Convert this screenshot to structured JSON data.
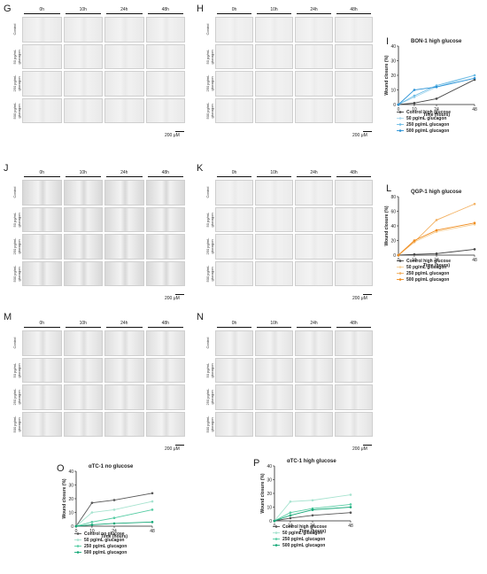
{
  "micro_panels": [
    {
      "id": "G",
      "bg": "#e9e9e9",
      "col_heads": [
        "0h",
        "10h",
        "24h",
        "48h"
      ],
      "rows": [
        "Control",
        "50 pg/mL glucagon",
        "250 pg/mL glucagon",
        "500 pg/mL glucagon"
      ],
      "scale": "200 μM"
    },
    {
      "id": "H",
      "bg": "#ececec",
      "col_heads": [
        "0h",
        "10h",
        "24h",
        "48h"
      ],
      "rows": [
        "Control",
        "50 pg/mL glucagon",
        "250 pg/mL glucagon",
        "500 pg/mL glucagon"
      ],
      "scale": "200 μM"
    },
    {
      "id": "J",
      "bg": "#d8d8d8",
      "col_heads": [
        "0h",
        "10h",
        "24h",
        "48h"
      ],
      "rows": [
        "Control",
        "50 pg/mL glucagon",
        "250 pg/mL glucagon",
        "500 pg/mL glucagon"
      ],
      "scale": "200 μM"
    },
    {
      "id": "K",
      "bg": "#ebebeb",
      "col_heads": [
        "0h",
        "10h",
        "24h",
        "48h"
      ],
      "rows": [
        "Control",
        "50 pg/mL glucagon",
        "250 pg/mL glucagon",
        "500 pg/mL glucagon"
      ],
      "scale": "200 μM"
    },
    {
      "id": "M",
      "bg": "#dedede",
      "col_heads": [
        "0h",
        "10h",
        "24h",
        "48h"
      ],
      "rows": [
        "Control",
        "50 pg/mL glucagon",
        "250 pg/mL glucagon",
        "500 pg/mL glucagon"
      ],
      "scale": "200 μM"
    },
    {
      "id": "N",
      "bg": "#e3e3e3",
      "col_heads": [
        "0h",
        "10h",
        "24h",
        "48h"
      ],
      "rows": [
        "Control",
        "50 pg/mL glucagon",
        "250 pg/mL glucagon",
        "500 pg/mL glucagon"
      ],
      "scale": "200 μM"
    }
  ],
  "chart_data": [
    {
      "id": "I",
      "type": "line",
      "title": "BON-1 high glucose",
      "xlabel": "Time (hours)",
      "ylabel": "Wound closure (%)",
      "x": [
        0,
        10,
        24,
        48
      ],
      "xticks": [
        0,
        10,
        24,
        48
      ],
      "yticks": [
        0,
        10,
        20,
        30,
        40
      ],
      "ylim": [
        0,
        40
      ],
      "series": [
        {
          "name": "Control high glucose",
          "color": "#444444",
          "values": [
            0,
            1,
            4,
            17
          ]
        },
        {
          "name": "50 pg/mL glucagon",
          "color": "#a9d8ef",
          "values": [
            0,
            5,
            12,
            20
          ]
        },
        {
          "name": "250 pg/mL glucagon",
          "color": "#6fbde6",
          "values": [
            0,
            6,
            13,
            20
          ]
        },
        {
          "name": "500 pg/mL glucagon",
          "color": "#2a92d6",
          "values": [
            0,
            10,
            12,
            18
          ]
        }
      ]
    },
    {
      "id": "L",
      "type": "line",
      "title": "QGP-1 high glucose",
      "xlabel": "Time (hours)",
      "ylabel": "Wound closure (%)",
      "x": [
        0,
        10,
        24,
        48
      ],
      "xticks": [
        0,
        10,
        24,
        48
      ],
      "yticks": [
        0,
        20,
        40,
        60,
        80
      ],
      "ylim": [
        0,
        80
      ],
      "series": [
        {
          "name": "Control high glucose",
          "color": "#444444",
          "values": [
            0,
            1,
            2,
            8
          ]
        },
        {
          "name": "50 pg/mL glucagon",
          "color": "#f6cf96",
          "values": [
            0,
            18,
            32,
            42
          ]
        },
        {
          "name": "250 pg/mL glucagon",
          "color": "#f3b060",
          "values": [
            0,
            18,
            48,
            70
          ]
        },
        {
          "name": "500 pg/mL glucagon",
          "color": "#f08c1e",
          "values": [
            0,
            20,
            34,
            44
          ]
        }
      ]
    },
    {
      "id": "O",
      "type": "line",
      "title": "αTC-1 no glucose",
      "xlabel": "Time (hours)",
      "ylabel": "Wound closure (%)",
      "x": [
        0,
        10,
        24,
        48
      ],
      "xticks": [
        0,
        10,
        24,
        48
      ],
      "yticks": [
        0,
        10,
        20,
        30,
        40
      ],
      "ylim": [
        0,
        40
      ],
      "series": [
        {
          "name": "Control no glucose",
          "color": "#555555",
          "values": [
            0,
            17,
            19,
            24
          ]
        },
        {
          "name": "50 pg/mL glucagon",
          "color": "#a6e3cf",
          "values": [
            0,
            10,
            12,
            18
          ]
        },
        {
          "name": "250 pg/mL glucagon",
          "color": "#55cca3",
          "values": [
            0,
            3,
            6,
            12
          ]
        },
        {
          "name": "500 pg/mL glucagon",
          "color": "#14a877",
          "values": [
            0,
            1,
            2,
            3
          ]
        }
      ]
    },
    {
      "id": "P",
      "type": "line",
      "title": "αTC-1 high glucose",
      "xlabel": "Time (hours)",
      "ylabel": "Wound closure (%)",
      "x": [
        0,
        10,
        24,
        48
      ],
      "xticks": [
        0,
        10,
        24,
        48
      ],
      "yticks": [
        0,
        10,
        20,
        30,
        40
      ],
      "ylim": [
        0,
        40
      ],
      "series": [
        {
          "name": "Control high glucose",
          "color": "#555555",
          "values": [
            0,
            2,
            4,
            6
          ]
        },
        {
          "name": "50 pg/mL glucagon",
          "color": "#a6e3cf",
          "values": [
            0,
            14,
            15,
            19
          ]
        },
        {
          "name": "250 pg/mL glucagon",
          "color": "#55cca3",
          "values": [
            0,
            6,
            9,
            12
          ]
        },
        {
          "name": "500 pg/mL glucagon",
          "color": "#14a877",
          "values": [
            0,
            4,
            8,
            10
          ]
        }
      ]
    }
  ]
}
